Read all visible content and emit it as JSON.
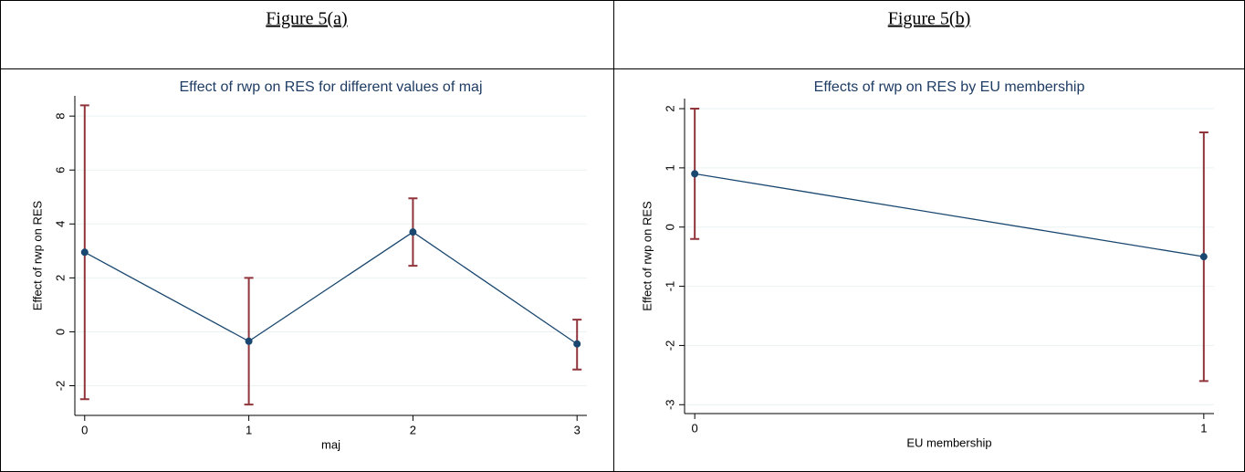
{
  "table": {
    "headers": [
      "Figure 5(a)",
      "Figure 5(b)"
    ]
  },
  "chart_data": [
    {
      "type": "line",
      "title": "Effect of rwp on RES for different values of maj",
      "x_label": "maj",
      "y_label": "Effect of rwp on RES",
      "x": [
        0,
        1,
        2,
        3
      ],
      "xlim": [
        -0.06,
        3.06
      ],
      "xticks": [
        0,
        1,
        2,
        3
      ],
      "ylim": [
        -3.1,
        8.75
      ],
      "yticks": [
        -2,
        0,
        2,
        4,
        6,
        8
      ],
      "grid": true,
      "series": [
        {
          "color": "#1a476f",
          "ci_color": "#90353b",
          "values": [
            2.95,
            -0.35,
            3.7,
            -0.45
          ],
          "lower": [
            -2.5,
            -2.7,
            2.45,
            -1.4
          ],
          "upper": [
            8.4,
            2.0,
            4.95,
            0.45
          ]
        }
      ]
    },
    {
      "type": "line",
      "title": "Effects of rwp on RES by EU membership",
      "x_label": "EU membership",
      "y_label": "Effect of rwp on RES",
      "x": [
        0,
        1
      ],
      "xlim": [
        -0.02,
        1.02
      ],
      "xticks": [
        0,
        1
      ],
      "ylim": [
        -3.15,
        2.17
      ],
      "yticks": [
        -3,
        -2,
        -1,
        0,
        1,
        2
      ],
      "grid": true,
      "series": [
        {
          "color": "#1a476f",
          "ci_color": "#90353b",
          "values": [
            0.9,
            -0.5
          ],
          "lower": [
            -0.2,
            -2.6
          ],
          "upper": [
            2.0,
            1.6
          ]
        }
      ]
    }
  ]
}
